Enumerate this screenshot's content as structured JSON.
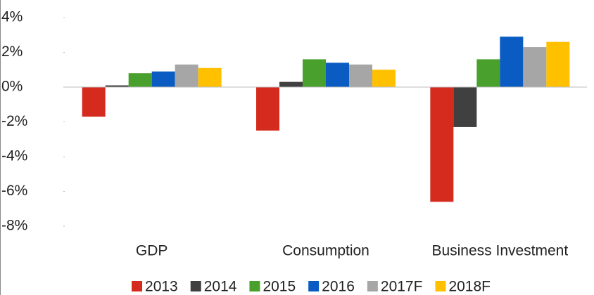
{
  "chart_data": {
    "type": "bar",
    "categories": [
      "GDP",
      "Consumption",
      "Business Investment"
    ],
    "series": [
      {
        "name": "2013",
        "color": "#d52b1e",
        "values": [
          -1.7,
          -2.5,
          -6.6
        ]
      },
      {
        "name": "2014",
        "color": "#404040",
        "values": [
          0.1,
          0.3,
          -2.3
        ]
      },
      {
        "name": "2015",
        "color": "#4aa02c",
        "values": [
          0.8,
          1.6,
          1.6
        ]
      },
      {
        "name": "2016",
        "color": "#0a5cc2",
        "values": [
          0.9,
          1.4,
          2.9
        ]
      },
      {
        "name": "2017F",
        "color": "#a6a6a6",
        "values": [
          1.3,
          1.3,
          2.3
        ]
      },
      {
        "name": "2018F",
        "color": "#ffc000",
        "values": [
          1.1,
          1.0,
          2.6
        ]
      }
    ],
    "ylim": [
      -8,
      4
    ],
    "yticks": [
      {
        "value": -8,
        "label": "-8%"
      },
      {
        "value": -6,
        "label": "-6%"
      },
      {
        "value": -4,
        "label": "-4%"
      },
      {
        "value": -2,
        "label": "-2%"
      },
      {
        "value": 0,
        "label": "0%"
      },
      {
        "value": 2,
        "label": "2%"
      },
      {
        "value": 4,
        "label": "4%"
      }
    ],
    "legend": "bottom"
  }
}
